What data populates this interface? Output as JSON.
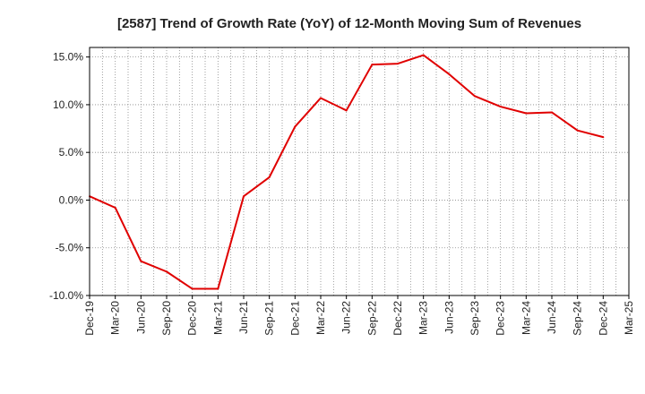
{
  "chart_data": {
    "type": "line",
    "title": "[2587]  Trend of Growth Rate (YoY) of 12-Month Moving Sum of Revenues",
    "xlabel": "",
    "ylabel": "",
    "ylim": [
      -10.0,
      16.0
    ],
    "y_ticks": [
      -10.0,
      -5.0,
      0.0,
      5.0,
      10.0,
      15.0
    ],
    "y_tick_labels": [
      "-10.0%",
      "-5.0%",
      "0.0%",
      "5.0%",
      "10.0%",
      "15.0%"
    ],
    "x_tick_labels": [
      "Dec-19",
      "Mar-20",
      "Jun-20",
      "Sep-20",
      "Dec-20",
      "Mar-21",
      "Jun-21",
      "Sep-21",
      "Dec-21",
      "Mar-22",
      "Jun-22",
      "Sep-22",
      "Dec-22",
      "Mar-23",
      "Jun-23",
      "Sep-23",
      "Dec-23",
      "Mar-24",
      "Jun-24",
      "Sep-24",
      "Dec-24",
      "Mar-25"
    ],
    "grid": true,
    "series": [
      {
        "color": "#e00000",
        "x": [
          "Dec-19",
          "Mar-20",
          "Jun-20",
          "Sep-20",
          "Dec-20",
          "Mar-21",
          "Jun-21",
          "Sep-21",
          "Dec-21",
          "Mar-22",
          "Jun-22",
          "Sep-22",
          "Dec-22",
          "Mar-23",
          "Jun-23",
          "Sep-23",
          "Dec-23",
          "Mar-24",
          "Jun-24",
          "Sep-24",
          "Dec-24"
        ],
        "values": [
          0.4,
          -0.8,
          -6.4,
          -7.5,
          -9.3,
          -9.3,
          0.4,
          2.4,
          7.7,
          10.7,
          9.4,
          14.2,
          14.3,
          15.2,
          13.2,
          10.9,
          9.8,
          9.1,
          9.2,
          7.3,
          6.6
        ]
      }
    ]
  }
}
